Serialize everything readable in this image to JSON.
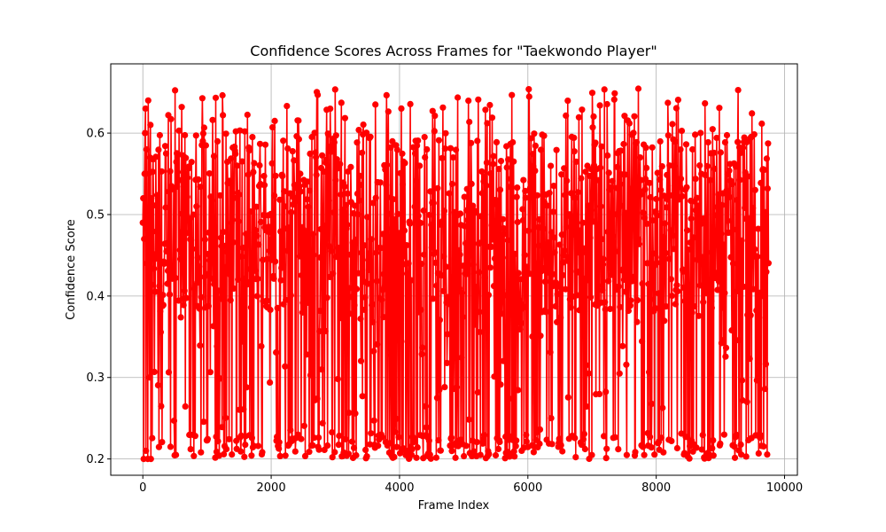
{
  "chart_data": {
    "type": "line",
    "title": "Confidence Scores Across Frames for \"Taekwondo Player\"",
    "xlabel": "Frame Index",
    "ylabel": "Confidence Score",
    "xlim": [
      -500,
      10200
    ],
    "ylim": [
      0.18,
      0.685
    ],
    "xticks": [
      0,
      2000,
      4000,
      6000,
      8000,
      10000
    ],
    "yticks": [
      0.2,
      0.3,
      0.4,
      0.5,
      0.6
    ],
    "xtick_labels": [
      "0",
      "2000",
      "4000",
      "6000",
      "8000",
      "10000"
    ],
    "ytick_labels": [
      "0.2",
      "0.3",
      "0.4",
      "0.5",
      "0.6"
    ],
    "grid": true,
    "marker": "circle",
    "series": [
      {
        "color": "#ff0000",
        "x_start": 0,
        "x_end": 9750,
        "n_points": 9751,
        "value_min": 0.2,
        "value_max": 0.665,
        "sample_values": [
          0.49,
          0.52,
          0.2,
          0.47,
          0.55,
          0.6,
          0.63,
          0.21,
          0.58,
          0.44,
          0.5,
          0.2,
          0.64,
          0.55,
          0.48,
          0.3,
          0.57,
          0.61,
          0.2,
          0.52
        ]
      }
    ]
  }
}
